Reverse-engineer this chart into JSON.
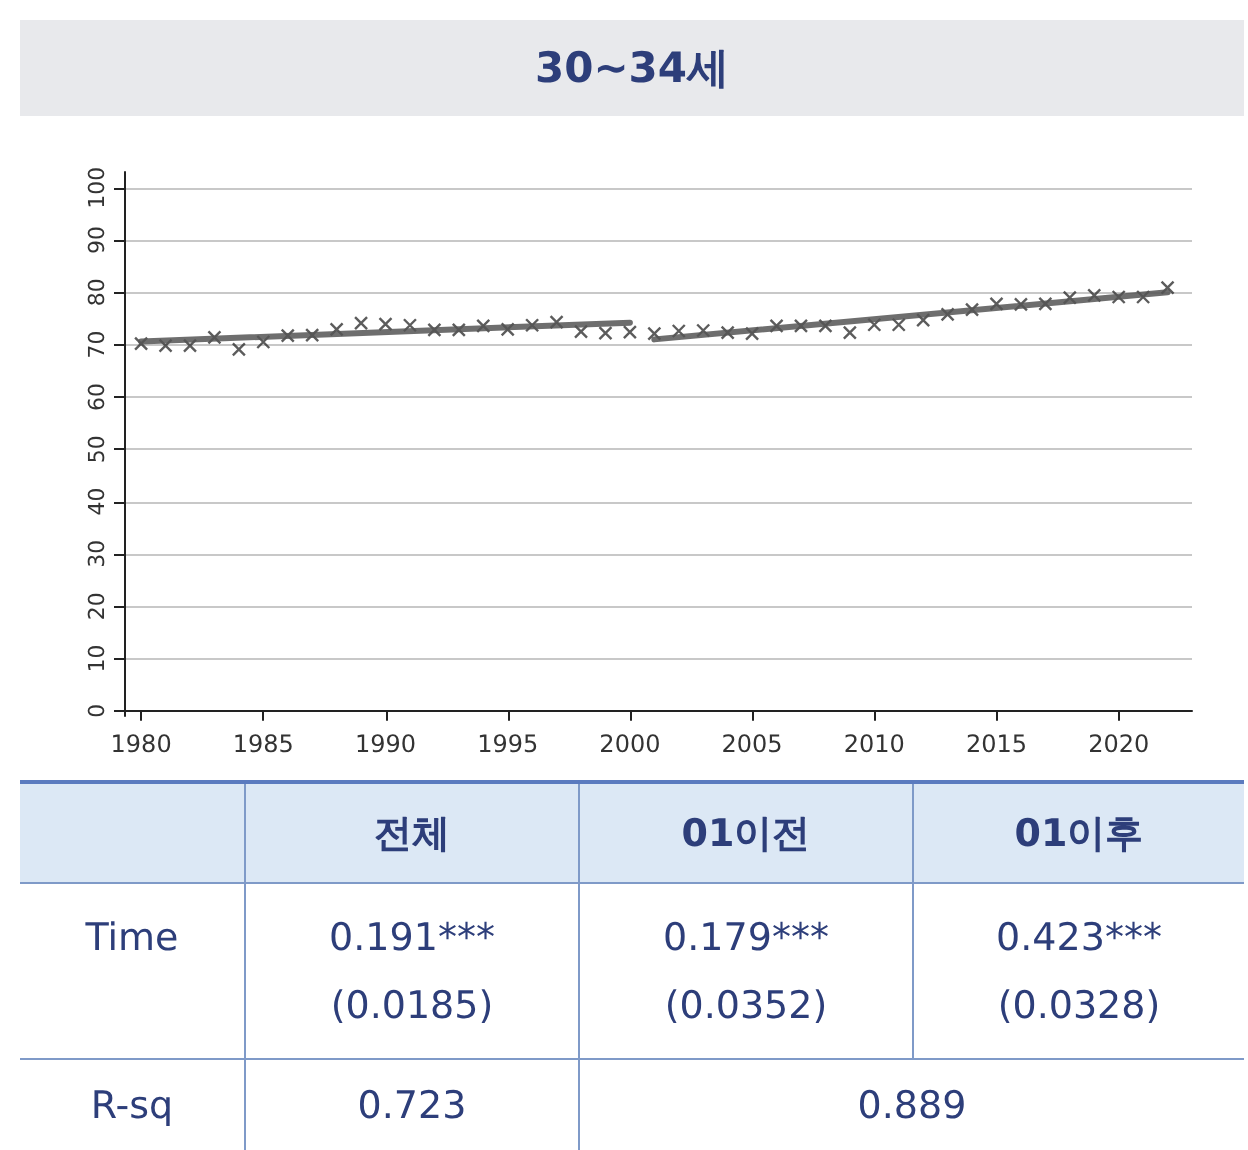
{
  "chart_data": {
    "type": "scatter",
    "title": "30~34세",
    "grid": "y",
    "xlim": [
      1979.3,
      2023
    ],
    "xticks": [
      1980,
      1985,
      1990,
      1995,
      2000,
      2005,
      2010,
      2015,
      2020
    ],
    "ylim": [
      -1,
      103
    ],
    "yticks": [
      0,
      10,
      20,
      30,
      40,
      50,
      60,
      70,
      80,
      90,
      100
    ],
    "series": [
      {
        "marker": "cross",
        "color": "#333333",
        "x": [
          1980,
          1981,
          1982,
          1983,
          1984,
          1985,
          1986,
          1987,
          1988,
          1989,
          1990,
          1991,
          1992,
          1993,
          1994,
          1995,
          1996,
          1997,
          1998,
          1999,
          2000,
          2001,
          2002,
          2003,
          2004,
          2005,
          2006,
          2007,
          2008,
          2009,
          2010,
          2011,
          2012,
          2013,
          2014,
          2015,
          2016,
          2017,
          2018,
          2019,
          2020,
          2021,
          2022
        ],
        "values": [
          70.2,
          69.8,
          69.8,
          71.4,
          69.1,
          70.5,
          71.7,
          71.8,
          72.9,
          74.1,
          73.9,
          73.7,
          72.8,
          72.8,
          73.6,
          72.9,
          73.7,
          74.3,
          72.5,
          72.2,
          72.4,
          72.1,
          72.6,
          72.7,
          72.3,
          72.1,
          73.6,
          73.6,
          73.6,
          72.3,
          73.8,
          73.8,
          74.7,
          75.8,
          76.7,
          77.8,
          77.7,
          77.8,
          79.0,
          79.4,
          79.1,
          79.1,
          80.9
        ]
      },
      {
        "type": "line",
        "marker": "none",
        "color": "#555555",
        "x": [
          1980,
          2000
        ],
        "values": [
          70.6,
          74.2
        ]
      },
      {
        "type": "line",
        "marker": "none",
        "color": "#555555",
        "x": [
          2001,
          2022
        ],
        "values": [
          71.0,
          80.0
        ]
      }
    ],
    "annotations": [
      "전체",
      "01이전",
      "01이후",
      "Time",
      "0.191***",
      "0.179***",
      "0.423***",
      "(0.0185)",
      "(0.0352)",
      "(0.0328)",
      "R-sq",
      "0.723",
      "0.889"
    ]
  }
}
